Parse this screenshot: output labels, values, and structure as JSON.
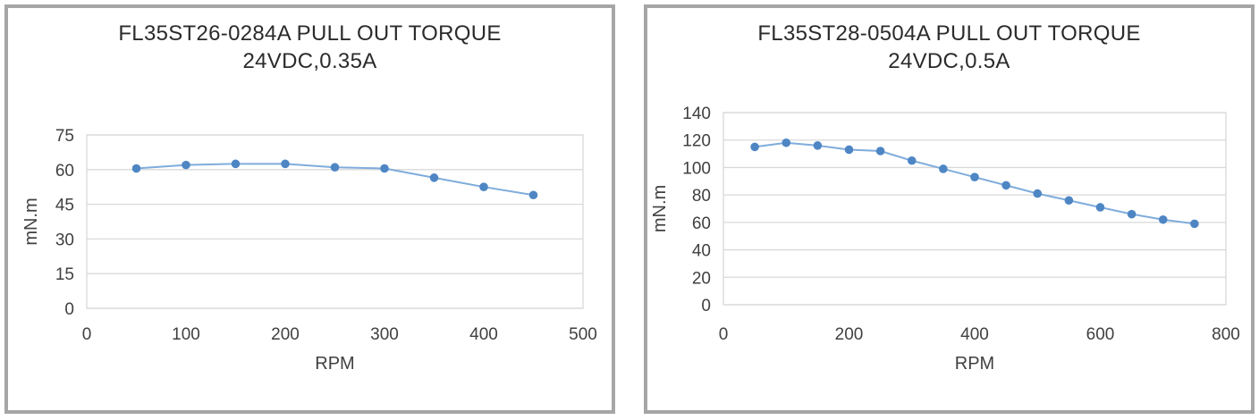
{
  "colors": {
    "series_line": "#7FACDC",
    "marker": "#4E86C4",
    "grid": "#D9D9D9",
    "axis_text": "#404040",
    "title_text": "#2B2B2B",
    "panel_border": "#A6A6A6",
    "panel_bg": "#FFFFFF"
  },
  "chart_data": [
    {
      "type": "line",
      "title": "FL35ST26-0284A PULL OUT TORQUE",
      "subtitle": "24VDC,0.35A",
      "xlabel": "RPM",
      "ylabel": "mN.m",
      "x": [
        50,
        100,
        150,
        200,
        250,
        300,
        350,
        400,
        450
      ],
      "values": [
        60.5,
        62,
        62.5,
        62.5,
        61,
        60.5,
        56.5,
        52.5,
        49
      ],
      "xlim": [
        0,
        500
      ],
      "ylim": [
        0,
        75
      ],
      "xticks": [
        0,
        100,
        200,
        300,
        400,
        500
      ],
      "yticks": [
        0,
        15,
        30,
        45,
        60,
        75
      ],
      "grid": "horizontal",
      "legend": "none",
      "marker": "circle"
    },
    {
      "type": "line",
      "title": "FL35ST28-0504A PULL OUT TORQUE",
      "subtitle": "24VDC,0.5A",
      "xlabel": "RPM",
      "ylabel": "mN.m",
      "x": [
        50,
        100,
        150,
        200,
        250,
        300,
        350,
        400,
        450,
        500,
        550,
        600,
        650,
        700,
        750
      ],
      "values": [
        115,
        118,
        116,
        113,
        112,
        105,
        99,
        93,
        87,
        81,
        76,
        71,
        66,
        62,
        59
      ],
      "xlim": [
        0,
        800
      ],
      "ylim": [
        0,
        140
      ],
      "xticks": [
        0,
        200,
        400,
        600,
        800
      ],
      "yticks": [
        0,
        20,
        40,
        60,
        80,
        100,
        120,
        140
      ],
      "grid": "horizontal",
      "legend": "none",
      "marker": "circle"
    }
  ]
}
